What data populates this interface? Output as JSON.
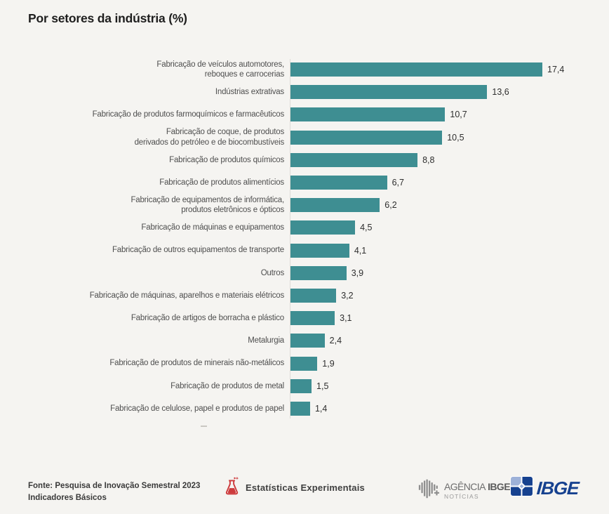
{
  "title": "Por setores da indústria (%)",
  "chart_data": {
    "type": "bar",
    "orientation": "horizontal",
    "title": "Por setores da indústria (%)",
    "xlabel": "",
    "ylabel": "",
    "xlim": [
      0,
      17.4
    ],
    "grid": false,
    "legend": "none",
    "bar_color": "#3e8e92",
    "categories": [
      "Fabricação de veículos automotores,\nreboques e carrocerias",
      "Indústrias extrativas",
      "Fabricação de produtos farmoquímicos e farmacêuticos",
      "Fabricação de coque, de produtos\nderivados do petróleo e de biocombustíveis",
      "Fabricação de produtos químicos",
      "Fabricação de produtos alimentícios",
      "Fabricação de equipamentos de informática,\nprodutos eletrônicos e ópticos",
      "Fabricação de máquinas e equipamentos",
      "Fabricação de outros equipamentos de transporte",
      "Outros",
      "Fabricação de máquinas, aparelhos e materiais elétricos",
      "Fabricação de artigos de borracha e plástico",
      "Metalurgia",
      "Fabricação de produtos de minerais não-metálicos",
      "Fabricação de produtos de metal",
      "Fabricação de celulose, papel e produtos de papel"
    ],
    "values": [
      17.4,
      13.6,
      10.7,
      10.5,
      8.8,
      6.7,
      6.2,
      4.5,
      4.1,
      3.9,
      3.2,
      3.1,
      2.4,
      1.9,
      1.5,
      1.4
    ],
    "value_labels": [
      "17,4",
      "13,6",
      "10,7",
      "10,5",
      "8,8",
      "6,7",
      "6,2",
      "4,5",
      "4,1",
      "3,9",
      "3,2",
      "3,1",
      "2,4",
      "1,9",
      "1,5",
      "1,4"
    ]
  },
  "footer": {
    "source_line1": "Fonte: Pesquisa de Inovação Semestral 2023",
    "source_line2": "Indicadores Básicos",
    "experimental_label": "Estatísticas Experimentais",
    "agencia_word1": "AGÊNCIA",
    "agencia_word2": "IBGE",
    "agencia_line2": "NOTÍCIAS",
    "ibge_label": "IBGE"
  },
  "colors": {
    "background": "#f5f4f1",
    "bar": "#3e8e92",
    "title_text": "#1e1e1e",
    "label_text": "#4f4f4f",
    "value_text": "#2e2e2e",
    "accent_red": "#cd3a3c",
    "ibge_navy": "#16418f",
    "ibge_light_blue": "#9db1d8",
    "agencia_gray": "#8f8f8f"
  }
}
